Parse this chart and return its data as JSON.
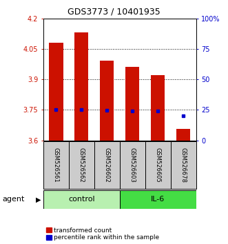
{
  "title": "GDS3773 / 10401935",
  "samples": [
    "GSM526561",
    "GSM526562",
    "GSM526602",
    "GSM526603",
    "GSM526605",
    "GSM526678"
  ],
  "bar_values": [
    4.08,
    4.13,
    3.99,
    3.96,
    3.92,
    3.655
  ],
  "percentile_values": [
    3.75,
    3.75,
    3.748,
    3.743,
    3.743,
    3.72
  ],
  "groups": [
    {
      "label": "control",
      "color": "#b8f0b0"
    },
    {
      "label": "IL-6",
      "color": "#44dd44"
    }
  ],
  "ylim_left": [
    3.6,
    4.2
  ],
  "ylim_right": [
    0,
    100
  ],
  "yticks_left": [
    3.6,
    3.75,
    3.9,
    4.05,
    4.2
  ],
  "yticks_right": [
    0,
    25,
    50,
    75,
    100
  ],
  "ytick_labels_left": [
    "3.6",
    "3.75",
    "3.9",
    "4.05",
    "4.2"
  ],
  "ytick_labels_right": [
    "0",
    "25",
    "50",
    "75",
    "100%"
  ],
  "hlines": [
    3.75,
    3.9,
    4.05
  ],
  "bar_color": "#cc1100",
  "marker_color": "#0000cc",
  "bar_width": 0.55,
  "sample_box_color": "#cccccc",
  "agent_label": "agent",
  "legend_tc": "transformed count",
  "legend_pr": "percentile rank within the sample",
  "title_fontsize": 9,
  "tick_fontsize": 7,
  "sample_fontsize": 6,
  "group_fontsize": 8,
  "legend_fontsize": 6.5
}
